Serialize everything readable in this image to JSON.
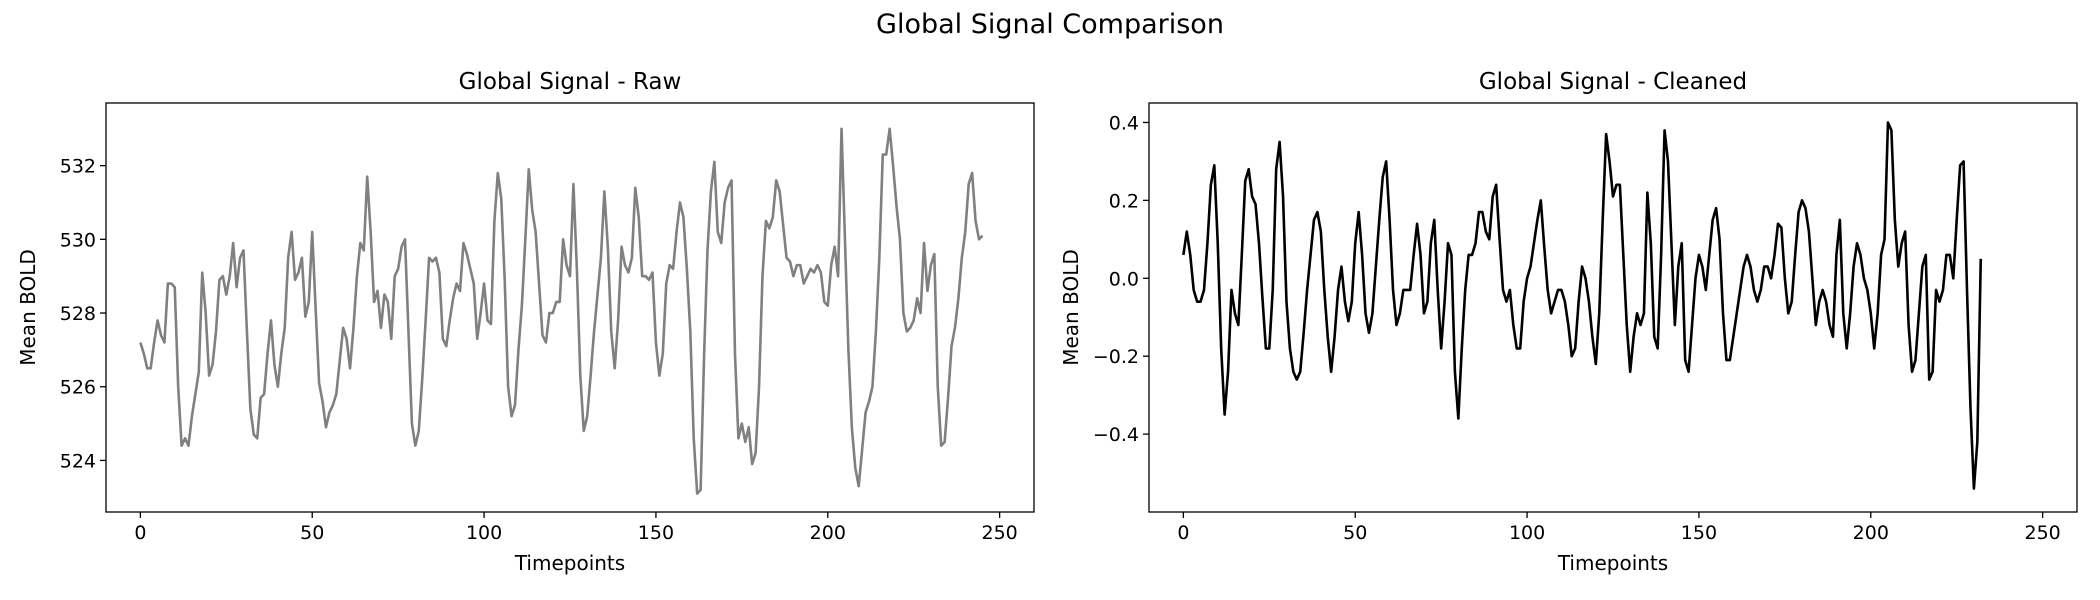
{
  "title": "Global Signal Comparison",
  "chart_data": [
    {
      "type": "line",
      "title": "Global Signal - Raw",
      "xlabel": "Timepoints",
      "ylabel": "Mean BOLD",
      "xlim": [
        -10,
        260
      ],
      "ylim": [
        522.6,
        533.7
      ],
      "xticks": [
        0,
        50,
        100,
        150,
        200,
        250
      ],
      "xtick_labels": [
        "0",
        "50",
        "100",
        "150",
        "200",
        "250"
      ],
      "yticks": [
        524,
        526,
        528,
        530,
        532
      ],
      "ytick_labels": [
        "524",
        "526",
        "528",
        "530",
        "532"
      ],
      "grid": false,
      "legend": "none",
      "color": "#808080",
      "series": [
        {
          "x_start": 0,
          "x_step": 1,
          "values": [
            527.2,
            526.9,
            526.5,
            526.5,
            527.2,
            527.8,
            527.4,
            527.2,
            528.8,
            528.8,
            528.7,
            526.0,
            524.4,
            524.6,
            524.4,
            525.2,
            525.8,
            526.4,
            529.1,
            528.0,
            526.3,
            526.6,
            527.5,
            528.9,
            529.0,
            528.5,
            529.0,
            529.9,
            528.7,
            529.5,
            529.7,
            527.5,
            525.4,
            524.7,
            524.6,
            525.7,
            525.8,
            526.9,
            527.8,
            526.6,
            526.0,
            526.9,
            527.6,
            529.5,
            530.2,
            528.9,
            529.1,
            529.5,
            527.9,
            528.3,
            530.2,
            528.1,
            526.1,
            525.6,
            524.9,
            525.3,
            525.5,
            525.8,
            526.7,
            527.6,
            527.3,
            526.5,
            527.6,
            529.0,
            529.9,
            529.7,
            531.7,
            530.2,
            528.3,
            528.6,
            527.6,
            528.5,
            528.3,
            527.3,
            529.0,
            529.2,
            529.8,
            530.0,
            527.5,
            525.0,
            524.4,
            524.8,
            526.2,
            527.8,
            529.5,
            529.4,
            529.5,
            529.1,
            527.3,
            527.1,
            527.8,
            528.4,
            528.8,
            528.6,
            529.9,
            529.6,
            529.2,
            528.8,
            527.3,
            528.0,
            528.8,
            527.8,
            527.7,
            530.5,
            531.8,
            531.1,
            528.9,
            526.0,
            525.2,
            525.5,
            527.0,
            528.2,
            530.0,
            531.9,
            530.8,
            530.2,
            528.8,
            527.4,
            527.2,
            528.0,
            528.0,
            528.3,
            528.3,
            530.0,
            529.3,
            529.0,
            531.5,
            529.2,
            526.3,
            524.8,
            525.2,
            526.3,
            527.5,
            528.5,
            529.5,
            531.3,
            529.8,
            527.5,
            526.5,
            527.8,
            529.8,
            529.3,
            529.1,
            529.5,
            531.4,
            530.6,
            529.0,
            529.0,
            528.9,
            529.1,
            527.2,
            526.3,
            526.9,
            528.8,
            529.3,
            529.2,
            530.2,
            531.0,
            530.6,
            529.2,
            527.5,
            524.6,
            523.1,
            523.2,
            526.8,
            529.7,
            531.3,
            532.1,
            530.2,
            529.9,
            531.0,
            531.4,
            531.6,
            526.9,
            524.6,
            525.0,
            524.5,
            524.9,
            523.9,
            524.2,
            526.0,
            529.0,
            530.5,
            530.3,
            530.6,
            531.6,
            531.3,
            530.4,
            529.5,
            529.4,
            529.0,
            529.3,
            529.3,
            528.8,
            529.0,
            529.2,
            529.1,
            529.3,
            529.1,
            528.3,
            528.2,
            529.3,
            529.8,
            529.0,
            533.0,
            530.0,
            527.0,
            524.9,
            523.8,
            523.3,
            524.3,
            525.3,
            525.6,
            526.0,
            527.5,
            529.5,
            532.3,
            532.3,
            533.0,
            532.0,
            530.9,
            530.0,
            528.0,
            527.5,
            527.6,
            527.8,
            528.4,
            528.0,
            529.9,
            528.6,
            529.3,
            529.6,
            526.0,
            524.4,
            524.5,
            525.7,
            527.1,
            527.6,
            528.4,
            529.5,
            530.2,
            531.5,
            531.8,
            530.5,
            530.0,
            530.1
          ]
        }
      ]
    },
    {
      "type": "line",
      "title": "Global Signal - Cleaned",
      "xlabel": "Timepoints",
      "ylabel": "Mean BOLD",
      "xlim": [
        -10,
        260
      ],
      "ylim": [
        -0.6,
        0.45
      ],
      "xticks": [
        0,
        50,
        100,
        150,
        200,
        250
      ],
      "xtick_labels": [
        "0",
        "50",
        "100",
        "150",
        "200",
        "250"
      ],
      "yticks": [
        -0.4,
        -0.2,
        0.0,
        0.2,
        0.4
      ],
      "ytick_labels": [
        "−0.4",
        "−0.2",
        "0.0",
        "0.2",
        "0.4"
      ],
      "grid": false,
      "legend": "none",
      "color": "#000000",
      "series": [
        {
          "x_start": 0,
          "x_step": 1,
          "values": [
            0.06,
            0.12,
            0.06,
            -0.03,
            -0.06,
            -0.06,
            -0.03,
            0.09,
            0.24,
            0.29,
            0.09,
            -0.18,
            -0.35,
            -0.24,
            -0.03,
            -0.09,
            -0.12,
            0.06,
            0.25,
            0.28,
            0.21,
            0.19,
            0.09,
            -0.05,
            -0.18,
            -0.18,
            -0.03,
            0.28,
            0.35,
            0.21,
            -0.06,
            -0.18,
            -0.24,
            -0.26,
            -0.24,
            -0.14,
            -0.03,
            0.06,
            0.15,
            0.17,
            0.12,
            -0.03,
            -0.15,
            -0.24,
            -0.15,
            -0.03,
            0.03,
            -0.06,
            -0.11,
            -0.06,
            0.09,
            0.17,
            0.06,
            -0.09,
            -0.14,
            -0.09,
            0.03,
            0.15,
            0.26,
            0.3,
            0.15,
            -0.03,
            -0.12,
            -0.09,
            -0.03,
            -0.03,
            -0.03,
            0.06,
            0.14,
            0.06,
            -0.09,
            -0.06,
            0.09,
            0.15,
            -0.03,
            -0.18,
            -0.06,
            0.09,
            0.06,
            -0.24,
            -0.36,
            -0.18,
            -0.03,
            0.06,
            0.06,
            0.09,
            0.17,
            0.17,
            0.12,
            0.1,
            0.21,
            0.24,
            0.1,
            -0.03,
            -0.06,
            -0.03,
            -0.12,
            -0.18,
            -0.18,
            -0.06,
            0.0,
            0.03,
            0.09,
            0.15,
            0.2,
            0.08,
            -0.03,
            -0.09,
            -0.06,
            -0.03,
            -0.03,
            -0.06,
            -0.12,
            -0.2,
            -0.18,
            -0.06,
            0.03,
            0.0,
            -0.06,
            -0.15,
            -0.22,
            -0.09,
            0.15,
            0.37,
            0.3,
            0.21,
            0.24,
            0.24,
            0.06,
            -0.12,
            -0.24,
            -0.15,
            -0.09,
            -0.12,
            -0.09,
            0.22,
            0.09,
            -0.15,
            -0.18,
            0.06,
            0.38,
            0.3,
            0.09,
            -0.12,
            0.03,
            0.09,
            -0.21,
            -0.24,
            -0.12,
            0.0,
            0.06,
            0.03,
            -0.03,
            0.06,
            0.15,
            0.18,
            0.1,
            -0.09,
            -0.21,
            -0.21,
            -0.15,
            -0.09,
            -0.03,
            0.03,
            0.06,
            0.03,
            -0.03,
            -0.06,
            -0.03,
            0.03,
            0.03,
            0.0,
            0.06,
            0.14,
            0.13,
            0.0,
            -0.09,
            -0.06,
            0.06,
            0.17,
            0.2,
            0.18,
            0.12,
            0.0,
            -0.12,
            -0.06,
            -0.03,
            -0.06,
            -0.12,
            -0.15,
            0.06,
            0.15,
            -0.09,
            -0.18,
            -0.09,
            0.03,
            0.09,
            0.06,
            0.0,
            -0.03,
            -0.09,
            -0.18,
            -0.09,
            0.06,
            0.1,
            0.4,
            0.38,
            0.15,
            0.03,
            0.09,
            0.12,
            -0.12,
            -0.24,
            -0.21,
            -0.09,
            0.03,
            0.06,
            -0.26,
            -0.24,
            -0.03,
            -0.06,
            -0.03,
            0.06,
            0.06,
            0.0,
            0.15,
            0.29,
            0.3,
            -0.03,
            -0.33,
            -0.54,
            -0.42,
            0.05
          ]
        }
      ]
    }
  ]
}
